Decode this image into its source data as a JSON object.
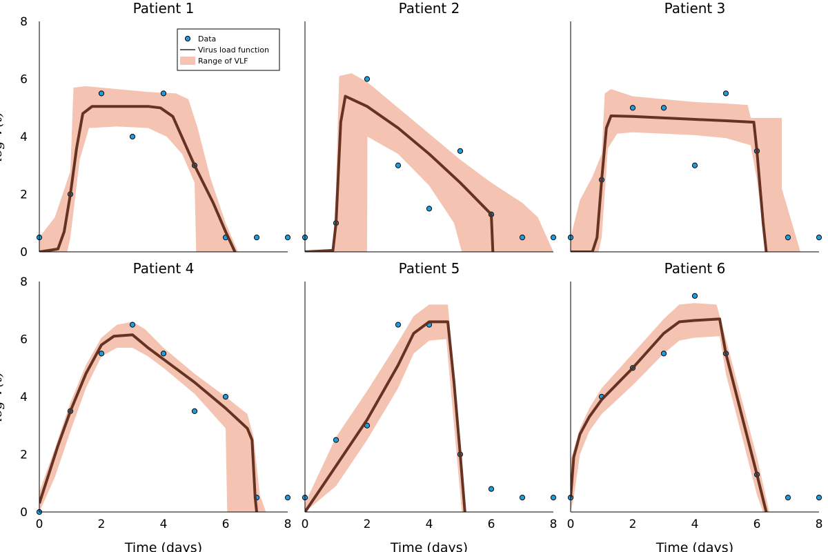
{
  "colors": {
    "data_fill": "#1f9bde",
    "data_stroke": "#000000",
    "line": "#5e2a1a",
    "band": "#f4c3b2"
  },
  "legend": {
    "data": "Data",
    "line": "Virus load function",
    "band": "Range of VLF"
  },
  "axis_text": {
    "xlabel": "Time (days)",
    "ylabel": "log V(t)"
  },
  "chart_data": [
    {
      "type": "line",
      "title": "Patient 1",
      "xlim": [
        0,
        8
      ],
      "ylim": [
        0,
        8
      ],
      "xticks": [
        0,
        2,
        4,
        6,
        8
      ],
      "yticks": [
        0,
        2,
        4,
        6,
        8
      ],
      "show_xticks": false,
      "show_yticks": true,
      "show_xlabel": false,
      "show_ylabel": true,
      "legend": "top-right",
      "data_points": [
        [
          0,
          0.5
        ],
        [
          1,
          2
        ],
        [
          2,
          5.5
        ],
        [
          3,
          4
        ],
        [
          4,
          5.5
        ],
        [
          5,
          3
        ],
        [
          6,
          0.5
        ],
        [
          7,
          0.5
        ],
        [
          8,
          0.5
        ]
      ],
      "vlf": [
        [
          0,
          0
        ],
        [
          0.6,
          0.1
        ],
        [
          0.8,
          0.7
        ],
        [
          1,
          2
        ],
        [
          1.2,
          3.6
        ],
        [
          1.4,
          4.8
        ],
        [
          1.7,
          5.05
        ],
        [
          2.5,
          5.05
        ],
        [
          3.5,
          5.05
        ],
        [
          3.9,
          5.0
        ],
        [
          4.3,
          4.7
        ],
        [
          5,
          3.0
        ],
        [
          5.6,
          1.7
        ],
        [
          6,
          0.7
        ],
        [
          6.3,
          0
        ]
      ],
      "band_upper": [
        [
          0,
          0.5
        ],
        [
          0.5,
          1.2
        ],
        [
          1,
          2.8
        ],
        [
          1.1,
          5.7
        ],
        [
          1.5,
          5.75
        ],
        [
          2.5,
          5.65
        ],
        [
          3.5,
          5.55
        ],
        [
          4.4,
          5.5
        ],
        [
          4.8,
          5.3
        ],
        [
          5.1,
          4.3
        ],
        [
          5.5,
          2.6
        ],
        [
          6,
          1.0
        ],
        [
          6.4,
          0
        ]
      ],
      "band_lower": [
        [
          0,
          0
        ],
        [
          0.9,
          0
        ],
        [
          1,
          0.5
        ],
        [
          1.3,
          3.2
        ],
        [
          1.6,
          4.3
        ],
        [
          2.5,
          4.35
        ],
        [
          3.5,
          4.3
        ],
        [
          4.1,
          4.0
        ],
        [
          4.6,
          3.4
        ],
        [
          5.0,
          2.4
        ],
        [
          5.05,
          0
        ],
        [
          6.4,
          0
        ]
      ]
    },
    {
      "type": "line",
      "title": "Patient 2",
      "xlim": [
        0,
        8
      ],
      "ylim": [
        0,
        8
      ],
      "xticks": [
        0,
        2,
        4,
        6,
        8
      ],
      "yticks": [
        0,
        2,
        4,
        6,
        8
      ],
      "show_xticks": false,
      "show_yticks": false,
      "show_xlabel": false,
      "show_ylabel": false,
      "legend": "none",
      "data_points": [
        [
          0,
          0.5
        ],
        [
          1,
          1
        ],
        [
          2,
          6
        ],
        [
          3,
          3
        ],
        [
          4,
          1.5
        ],
        [
          5,
          3.5
        ],
        [
          6,
          1.3
        ],
        [
          7,
          0.5
        ],
        [
          8,
          0.5
        ]
      ],
      "vlf": [
        [
          0,
          0
        ],
        [
          0.9,
          0.05
        ],
        [
          1,
          1
        ],
        [
          1.15,
          4.5
        ],
        [
          1.3,
          5.4
        ],
        [
          2,
          5.05
        ],
        [
          3,
          4.3
        ],
        [
          4,
          3.4
        ],
        [
          5,
          2.4
        ],
        [
          6,
          1.3
        ],
        [
          6.05,
          0
        ]
      ],
      "band_upper": [
        [
          0.9,
          0
        ],
        [
          1,
          2.2
        ],
        [
          1.1,
          6.1
        ],
        [
          1.5,
          6.2
        ],
        [
          2,
          5.9
        ],
        [
          3,
          5.0
        ],
        [
          4,
          4.1
        ],
        [
          5,
          3.2
        ],
        [
          6,
          2.4
        ],
        [
          7,
          1.7
        ],
        [
          7.5,
          1.2
        ],
        [
          8,
          0
        ]
      ],
      "band_lower": [
        [
          0.9,
          0
        ],
        [
          2,
          0
        ],
        [
          2.01,
          4.0
        ],
        [
          3,
          3.4
        ],
        [
          4,
          2.3
        ],
        [
          4.8,
          1.0
        ],
        [
          5.05,
          0
        ],
        [
          8,
          0
        ]
      ]
    },
    {
      "type": "line",
      "title": "Patient 3",
      "xlim": [
        0,
        8
      ],
      "ylim": [
        0,
        8
      ],
      "xticks": [
        0,
        2,
        4,
        6,
        8
      ],
      "yticks": [
        0,
        2,
        4,
        6,
        8
      ],
      "show_xticks": false,
      "show_yticks": false,
      "show_xlabel": false,
      "show_ylabel": false,
      "legend": "none",
      "data_points": [
        [
          0,
          0.5
        ],
        [
          1,
          2.5
        ],
        [
          2,
          5
        ],
        [
          3,
          5
        ],
        [
          4,
          3
        ],
        [
          5,
          5.5
        ],
        [
          6,
          3.5
        ],
        [
          7,
          0.5
        ],
        [
          8,
          0.5
        ]
      ],
      "vlf": [
        [
          0,
          0
        ],
        [
          0.7,
          0
        ],
        [
          0.85,
          0.5
        ],
        [
          1,
          2.5
        ],
        [
          1.15,
          4.3
        ],
        [
          1.3,
          4.72
        ],
        [
          2,
          4.7
        ],
        [
          3,
          4.65
        ],
        [
          4,
          4.6
        ],
        [
          5,
          4.55
        ],
        [
          5.9,
          4.5
        ],
        [
          6,
          3.5
        ],
        [
          6.2,
          1.0
        ],
        [
          6.3,
          0
        ]
      ],
      "band_upper": [
        [
          0,
          0.5
        ],
        [
          0.3,
          1.8
        ],
        [
          0.7,
          2.6
        ],
        [
          1,
          3.4
        ],
        [
          1.1,
          5.5
        ],
        [
          1.3,
          5.65
        ],
        [
          2,
          5.4
        ],
        [
          3,
          5.3
        ],
        [
          4,
          5.2
        ],
        [
          5,
          5.15
        ],
        [
          5.7,
          5.1
        ],
        [
          5.8,
          4.65
        ],
        [
          6.8,
          4.65
        ],
        [
          6.8,
          2.2
        ],
        [
          7.4,
          0
        ]
      ],
      "band_lower": [
        [
          0,
          0
        ],
        [
          0.9,
          0
        ],
        [
          1,
          0.5
        ],
        [
          1.2,
          3.6
        ],
        [
          1.5,
          4.1
        ],
        [
          2,
          4.15
        ],
        [
          3,
          4.1
        ],
        [
          4,
          4.05
        ],
        [
          5,
          3.95
        ],
        [
          5.8,
          3.7
        ],
        [
          6.0,
          2.5
        ],
        [
          6.3,
          0
        ],
        [
          7.4,
          0
        ]
      ]
    },
    {
      "type": "line",
      "title": "Patient 4",
      "xlim": [
        0,
        8
      ],
      "ylim": [
        0,
        8
      ],
      "xticks": [
        0,
        2,
        4,
        6,
        8
      ],
      "yticks": [
        0,
        2,
        4,
        6,
        8
      ],
      "show_xticks": true,
      "show_yticks": true,
      "show_xlabel": true,
      "show_ylabel": true,
      "legend": "none",
      "data_points": [
        [
          0,
          0
        ],
        [
          1,
          3.5
        ],
        [
          2,
          5.5
        ],
        [
          3,
          6.5
        ],
        [
          4,
          5.5
        ],
        [
          5,
          3.5
        ],
        [
          6,
          4
        ],
        [
          7,
          0.5
        ],
        [
          8,
          0.5
        ]
      ],
      "vlf": [
        [
          0,
          0.3
        ],
        [
          0.3,
          1.3
        ],
        [
          0.6,
          2.3
        ],
        [
          1,
          3.5
        ],
        [
          1.5,
          4.8
        ],
        [
          2,
          5.8
        ],
        [
          2.4,
          6.1
        ],
        [
          3,
          6.15
        ],
        [
          3.5,
          5.7
        ],
        [
          4,
          5.3
        ],
        [
          5,
          4.5
        ],
        [
          6,
          3.6
        ],
        [
          6.7,
          2.9
        ],
        [
          6.85,
          2.5
        ],
        [
          6.95,
          0.5
        ],
        [
          7.0,
          0
        ]
      ],
      "band_upper": [
        [
          0,
          0.7
        ],
        [
          0.5,
          2.2
        ],
        [
          1,
          3.8
        ],
        [
          1.5,
          5.1
        ],
        [
          2,
          6.05
        ],
        [
          2.5,
          6.5
        ],
        [
          3,
          6.6
        ],
        [
          3.4,
          6.35
        ],
        [
          4,
          5.7
        ],
        [
          5,
          4.8
        ],
        [
          6,
          4.0
        ],
        [
          6.7,
          3.4
        ],
        [
          6.9,
          2.6
        ],
        [
          7.1,
          0.6
        ],
        [
          7.3,
          0
        ]
      ],
      "band_lower": [
        [
          0,
          0
        ],
        [
          0.5,
          1.2
        ],
        [
          1,
          2.8
        ],
        [
          1.5,
          4.3
        ],
        [
          2,
          5.4
        ],
        [
          2.5,
          5.7
        ],
        [
          3,
          5.7
        ],
        [
          3.5,
          5.4
        ],
        [
          4,
          5.0
        ],
        [
          5,
          4.1
        ],
        [
          6,
          2.9
        ],
        [
          6.05,
          0
        ],
        [
          7.3,
          0
        ]
      ]
    },
    {
      "type": "line",
      "title": "Patient 5",
      "xlim": [
        0,
        8
      ],
      "ylim": [
        0,
        8
      ],
      "xticks": [
        0,
        2,
        4,
        6,
        8
      ],
      "yticks": [
        0,
        2,
        4,
        6,
        8
      ],
      "show_xticks": true,
      "show_yticks": false,
      "show_xlabel": true,
      "show_ylabel": false,
      "legend": "none",
      "data_points": [
        [
          0,
          0.5
        ],
        [
          1,
          2.5
        ],
        [
          2,
          3
        ],
        [
          3,
          6.5
        ],
        [
          4,
          6.5
        ],
        [
          5,
          2
        ],
        [
          6,
          0.8
        ],
        [
          7,
          0.5
        ],
        [
          8,
          0.5
        ]
      ],
      "vlf": [
        [
          0,
          0
        ],
        [
          1,
          1.6
        ],
        [
          2,
          3.2
        ],
        [
          3,
          5.1
        ],
        [
          3.5,
          6.2
        ],
        [
          4,
          6.6
        ],
        [
          4.6,
          6.6
        ],
        [
          4.8,
          4.5
        ],
        [
          5,
          2.0
        ],
        [
          5.15,
          0
        ]
      ],
      "band_upper": [
        [
          0,
          0.3
        ],
        [
          1,
          2.6
        ],
        [
          2,
          4.2
        ],
        [
          3,
          5.9
        ],
        [
          3.5,
          6.8
        ],
        [
          4,
          7.2
        ],
        [
          4.6,
          7.2
        ],
        [
          4.8,
          4.9
        ],
        [
          5,
          2.3
        ],
        [
          5.15,
          0
        ]
      ],
      "band_lower": [
        [
          0,
          0
        ],
        [
          1,
          0.9
        ],
        [
          2,
          2.5
        ],
        [
          3,
          4.3
        ],
        [
          3.5,
          5.5
        ],
        [
          4,
          5.95
        ],
        [
          4.55,
          6.0
        ],
        [
          4.7,
          4.2
        ],
        [
          4.95,
          1.2
        ],
        [
          5.05,
          0
        ],
        [
          5.15,
          0
        ]
      ]
    },
    {
      "type": "line",
      "title": "Patient 6",
      "xlim": [
        0,
        8
      ],
      "ylim": [
        0,
        8
      ],
      "xticks": [
        0,
        2,
        4,
        6,
        8
      ],
      "yticks": [
        0,
        2,
        4,
        6,
        8
      ],
      "show_xticks": true,
      "show_yticks": false,
      "show_xlabel": true,
      "show_ylabel": false,
      "legend": "none",
      "data_points": [
        [
          0,
          0.5
        ],
        [
          1,
          4
        ],
        [
          2,
          5
        ],
        [
          3,
          5.5
        ],
        [
          4,
          7.5
        ],
        [
          5,
          5.5
        ],
        [
          6,
          1.3
        ],
        [
          7,
          0.5
        ],
        [
          8,
          0.5
        ]
      ],
      "vlf": [
        [
          0,
          0.5
        ],
        [
          0.1,
          1.9
        ],
        [
          0.3,
          2.7
        ],
        [
          0.6,
          3.3
        ],
        [
          1,
          3.9
        ],
        [
          2,
          5.0
        ],
        [
          3,
          6.2
        ],
        [
          3.5,
          6.6
        ],
        [
          4,
          6.65
        ],
        [
          4.8,
          6.7
        ],
        [
          5,
          5.5
        ],
        [
          6,
          1.3
        ],
        [
          6.3,
          0
        ]
      ],
      "band_upper": [
        [
          0,
          1.8
        ],
        [
          0.3,
          2.9
        ],
        [
          0.6,
          3.6
        ],
        [
          1,
          4.3
        ],
        [
          2,
          5.5
        ],
        [
          3,
          6.7
        ],
        [
          3.5,
          7.2
        ],
        [
          4,
          7.25
        ],
        [
          4.7,
          7.2
        ],
        [
          5,
          6.0
        ],
        [
          6,
          1.9
        ],
        [
          6.4,
          0
        ]
      ],
      "band_lower": [
        [
          0,
          0
        ],
        [
          0.1,
          0.5
        ],
        [
          0.3,
          2.0
        ],
        [
          0.6,
          2.8
        ],
        [
          1,
          3.4
        ],
        [
          2,
          4.4
        ],
        [
          3,
          5.5
        ],
        [
          3.5,
          5.95
        ],
        [
          4,
          6.05
        ],
        [
          4.8,
          6.1
        ],
        [
          5,
          4.8
        ],
        [
          6,
          0.6
        ],
        [
          6.2,
          0
        ],
        [
          6.4,
          0
        ]
      ]
    }
  ]
}
